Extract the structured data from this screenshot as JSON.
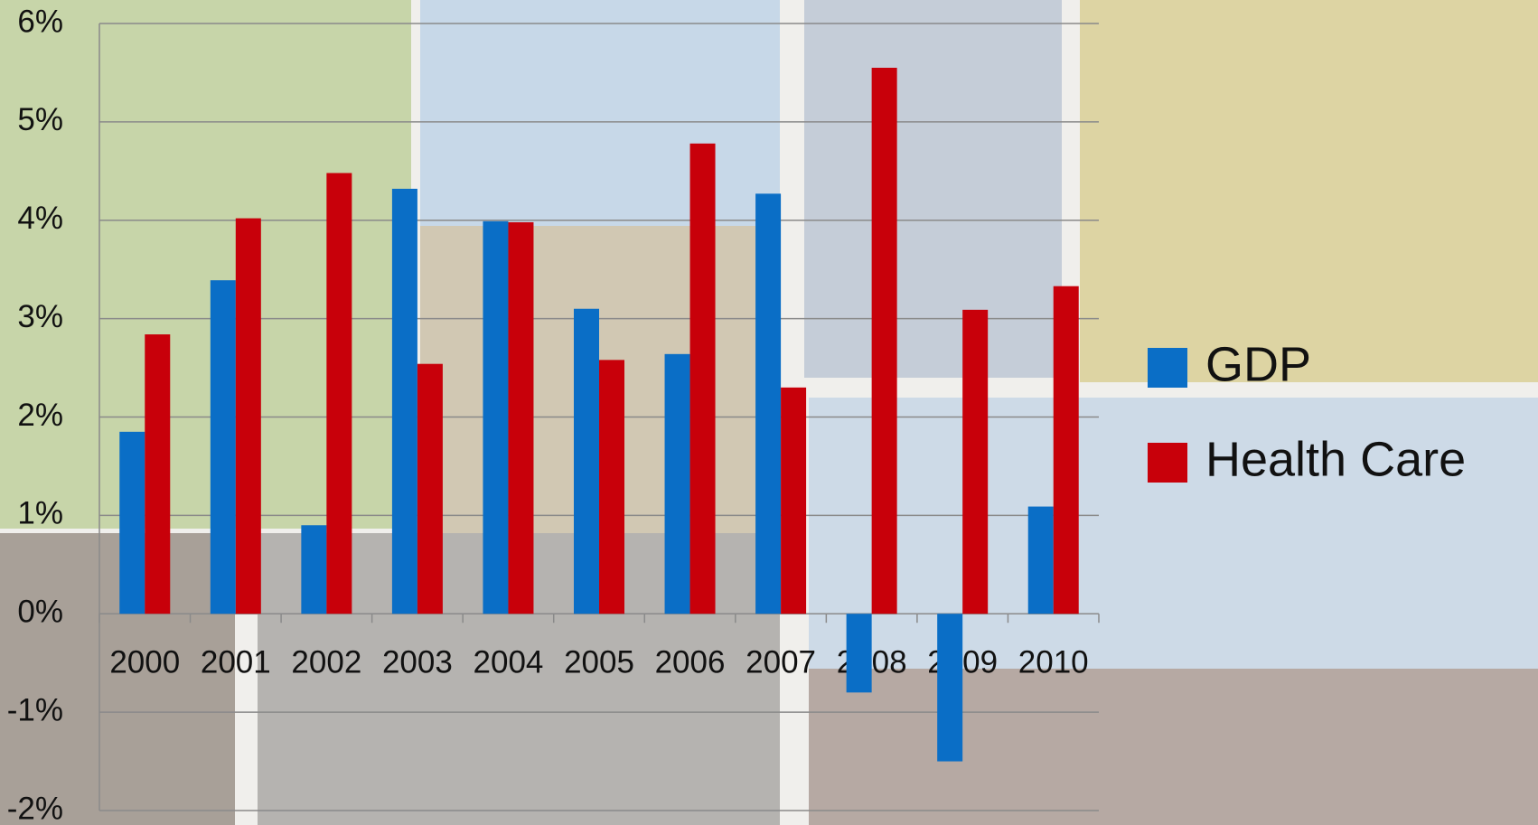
{
  "chart_data": {
    "type": "bar",
    "categories": [
      "2000",
      "2001",
      "2002",
      "2003",
      "2004",
      "2005",
      "2006",
      "2007",
      "2008",
      "2009",
      "2010"
    ],
    "series": [
      {
        "name": "GDP",
        "color": "#0a6ec6",
        "values": [
          1.85,
          3.39,
          0.9,
          4.32,
          3.99,
          3.1,
          2.64,
          4.27,
          -0.8,
          -1.5,
          1.09
        ]
      },
      {
        "name": "Health Care",
        "color": "#c8000a",
        "values": [
          2.84,
          4.02,
          4.48,
          2.54,
          3.98,
          2.58,
          4.78,
          2.3,
          5.55,
          3.09,
          3.33
        ]
      }
    ],
    "ylim": [
      -2,
      6
    ],
    "yticks": [
      {
        "value": -2,
        "label": "-2%"
      },
      {
        "value": -1,
        "label": "-1%"
      },
      {
        "value": 0,
        "label": "0%"
      },
      {
        "value": 1,
        "label": "1%"
      },
      {
        "value": 2,
        "label": "2%"
      },
      {
        "value": 3,
        "label": "3%"
      },
      {
        "value": 4,
        "label": "4%"
      },
      {
        "value": 5,
        "label": "5%"
      },
      {
        "value": 6,
        "label": "6%"
      }
    ],
    "grid": true
  }
}
